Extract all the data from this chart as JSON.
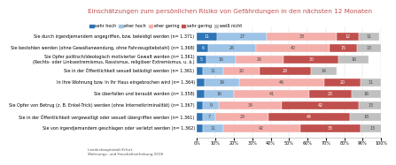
{
  "title": "Einschätzungen zum persönlichen Risiko von Gefährdungen in den nächsten 12 Monaten",
  "categories": [
    "Sie durch irgendjemandem angegriffen, bzw. beleidigt werden (n= 1.371)",
    "Sie bestohlen werden (ohne Gewaltanwendung, ohne Fahrzeugdiebstahl) (n= 1.368)",
    "Sie Opfer politisch/ideologisch motivierter Gewalt werden (n= 1.361)\n(Rechts- oder Linksextremismus, Rassismus, religiöser Extremismus, u. ä.)",
    "Sie in der Öffentlichkeit sexuell belästigt werden (n= 1.361)",
    "In Ihre Wohnung bzw. In Ihr Haus eingebrochen wird (n= 1.364)",
    "Sie überfallen und beraubt werden (n= 1.358)",
    "Sie Opfer von Betrug (z. B. Enkel-Trick) werden (ohne Internetkriminalität) (n= 1.367)",
    "Sie in der Öffentlichkeit vergewaltigt oder sexuell übergriffen werden (n= 1.361)",
    "Sie von irgendjemandem geschlagen oder verletzt werden (n= 1.362)"
  ],
  "series": {
    "sehr hoch": [
      11,
      6,
      5,
      3,
      4,
      4,
      3,
      3,
      3
    ],
    "eher hoch": [
      27,
      26,
      16,
      11,
      19,
      16,
      9,
      7,
      11
    ],
    "eher gering": [
      38,
      40,
      26,
      20,
      46,
      41,
      34,
      29,
      42
    ],
    "sehr gering": [
      12,
      15,
      30,
      28,
      20,
      23,
      42,
      44,
      33
    ],
    "weiß nicht": [
      11,
      13,
      16,
      14,
      11,
      16,
      13,
      18,
      13
    ]
  },
  "colors": {
    "sehr hoch": "#2E74B5",
    "eher hoch": "#9DC3E6",
    "eher gering": "#F4AFAB",
    "sehr gering": "#C0504D",
    "weiß nicht": "#C0C0C0"
  },
  "legend_order": [
    "sehr hoch",
    "eher hoch",
    "eher gering",
    "sehr gering",
    "weiß nicht"
  ],
  "footer": "Landeshauptstadt Erfurt\nWohnungs- und Haushaltserhebung 2018",
  "title_color": "#C0504D",
  "title_fontsize": 5.2,
  "label_fontsize": 3.5,
  "legend_fontsize": 3.5,
  "bar_value_fontsize": 3.4,
  "footer_fontsize": 3.0,
  "tick_fontsize": 3.5
}
